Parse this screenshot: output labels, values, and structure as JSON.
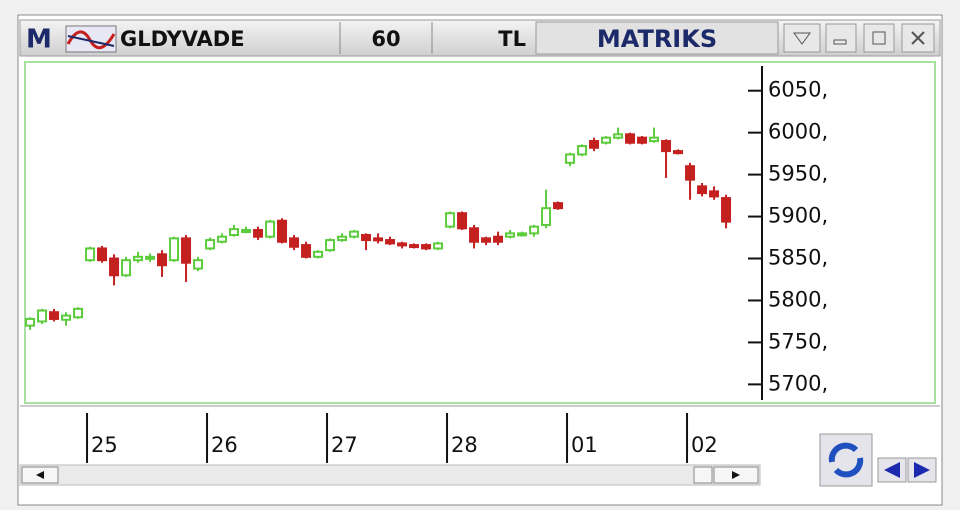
{
  "header": {
    "logo": "M",
    "symbol": "GLDYVADE",
    "period": "60",
    "currency": "TL",
    "brand": "MATRIKS"
  },
  "chart_data": {
    "type": "candlestick",
    "up_color": "#5ccc3c",
    "down_color": "#c42020",
    "open": [
      5770,
      5775,
      5786,
      5777,
      5780,
      5848,
      5862,
      5850,
      5830,
      5848,
      5850,
      5855,
      5848,
      5874,
      5838,
      5862,
      5870,
      5878,
      5882,
      5884,
      5876,
      5895,
      5874,
      5866,
      5852,
      5860,
      5872,
      5876,
      5878,
      5874,
      5872,
      5868,
      5866,
      5866,
      5862,
      5888,
      5904,
      5886,
      5874,
      5876,
      5876,
      5878,
      5880,
      5890,
      5916,
      5964,
      5974,
      5990,
      5988,
      5994,
      5998,
      5994,
      5990,
      5990,
      5978,
      5960,
      5936,
      5930,
      5922
    ],
    "high": [
      5780,
      5790,
      5790,
      5786,
      5792,
      5864,
      5865,
      5855,
      5852,
      5858,
      5856,
      5860,
      5876,
      5878,
      5852,
      5875,
      5880,
      5890,
      5888,
      5888,
      5896,
      5898,
      5878,
      5870,
      5860,
      5874,
      5880,
      5884,
      5880,
      5880,
      5876,
      5870,
      5868,
      5868,
      5870,
      5906,
      5906,
      5890,
      5876,
      5882,
      5884,
      5882,
      5890,
      5932,
      5918,
      5976,
      5986,
      5994,
      5996,
      6006,
      6000,
      5996,
      6006,
      5992,
      5980,
      5964,
      5940,
      5936,
      5926
    ],
    "low": [
      5765,
      5772,
      5775,
      5770,
      5778,
      5846,
      5845,
      5818,
      5828,
      5845,
      5846,
      5828,
      5846,
      5822,
      5835,
      5860,
      5868,
      5876,
      5880,
      5872,
      5874,
      5868,
      5860,
      5850,
      5850,
      5858,
      5870,
      5874,
      5860,
      5868,
      5866,
      5862,
      5862,
      5860,
      5860,
      5886,
      5884,
      5862,
      5866,
      5866,
      5874,
      5876,
      5876,
      5886,
      5908,
      5960,
      5972,
      5978,
      5986,
      5992,
      5986,
      5986,
      5988,
      5946,
      5974,
      5920,
      5924,
      5920,
      5886
    ],
    "close": [
      5778,
      5788,
      5778,
      5782,
      5790,
      5862,
      5848,
      5830,
      5848,
      5852,
      5852,
      5842,
      5874,
      5845,
      5848,
      5872,
      5876,
      5885,
      5884,
      5876,
      5894,
      5870,
      5864,
      5852,
      5858,
      5872,
      5876,
      5882,
      5872,
      5872,
      5868,
      5866,
      5864,
      5862,
      5868,
      5904,
      5886,
      5870,
      5870,
      5870,
      5880,
      5880,
      5888,
      5910,
      5910,
      5974,
      5984,
      5982,
      5994,
      5998,
      5988,
      5988,
      5994,
      5978,
      5976,
      5944,
      5928,
      5924,
      5894
    ],
    "xlim": [
      -0.42,
      60.83
    ],
    "xticks": [
      {
        "value": 4.75,
        "label": "25"
      },
      {
        "value": 14.75,
        "label": "26"
      },
      {
        "value": 24.75,
        "label": "27"
      },
      {
        "value": 34.75,
        "label": "28"
      },
      {
        "value": 44.75,
        "label": "01"
      },
      {
        "value": 54.75,
        "label": "02"
      }
    ],
    "ylim": [
      5679,
      6083
    ],
    "yticks": [
      {
        "value": 5700,
        "label": "5700,"
      },
      {
        "value": 5750,
        "label": "5750,"
      },
      {
        "value": 5800,
        "label": "5800,"
      },
      {
        "value": 5850,
        "label": "5850,"
      },
      {
        "value": 5900,
        "label": "5900,"
      },
      {
        "value": 5950,
        "label": "5950,"
      },
      {
        "value": 6000,
        "label": "6000,"
      },
      {
        "value": 6050,
        "label": "6050,"
      }
    ]
  }
}
